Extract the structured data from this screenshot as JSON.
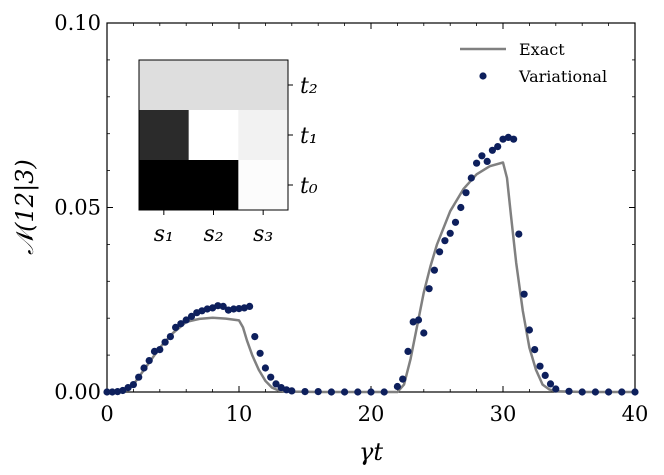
{
  "chart_data": {
    "type": "line",
    "xlabel": "γt",
    "ylabel": "𝒩(12|3)",
    "xlim": [
      0,
      40
    ],
    "ylim": [
      0,
      0.1
    ],
    "xticks": [
      0,
      10,
      20,
      30,
      40
    ],
    "xtick_labels": [
      "0",
      "10",
      "20",
      "30",
      "40"
    ],
    "yticks": [
      0.0,
      0.05,
      0.1
    ],
    "ytick_labels": [
      "0.00",
      "0.05",
      "0.10"
    ],
    "grid": false,
    "legend_position": "top-right",
    "series": [
      {
        "name": "Exact",
        "style": "line",
        "color": "#808080",
        "x": [
          0,
          1,
          2,
          3,
          4,
          5,
          6,
          7,
          8,
          9,
          10,
          10.3,
          10.6,
          11,
          11.5,
          12,
          12.5,
          13,
          14,
          16,
          18,
          20,
          22,
          22.5,
          23,
          23.5,
          24,
          24.5,
          25,
          26,
          27,
          28,
          29,
          30,
          30.3,
          30.6,
          31,
          31.5,
          32,
          32.5,
          33,
          33.5,
          34,
          35,
          36,
          38,
          40
        ],
        "y": [
          0,
          0.0003,
          0.002,
          0.007,
          0.012,
          0.016,
          0.019,
          0.0198,
          0.0201,
          0.0199,
          0.0194,
          0.0175,
          0.014,
          0.01,
          0.006,
          0.003,
          0.0012,
          0.0004,
          0.0001,
          0,
          0,
          0,
          0,
          0.002,
          0.009,
          0.018,
          0.027,
          0.034,
          0.04,
          0.049,
          0.055,
          0.059,
          0.0612,
          0.0622,
          0.058,
          0.048,
          0.035,
          0.022,
          0.012,
          0.006,
          0.002,
          0.0007,
          0.0002,
          0.0001,
          0,
          0,
          0
        ]
      },
      {
        "name": "Variational",
        "style": "markers",
        "color": "#0d1f5c",
        "x": [
          0,
          0.4,
          0.8,
          1.2,
          1.6,
          2,
          2.4,
          2.8,
          3.2,
          3.6,
          4,
          4.4,
          4.8,
          5.2,
          5.6,
          6,
          6.4,
          6.8,
          7.2,
          7.6,
          8,
          8.4,
          8.8,
          9.2,
          9.6,
          10,
          10.4,
          10.8,
          11.2,
          11.6,
          12,
          12.4,
          12.8,
          13.2,
          13.6,
          14,
          15,
          16,
          17,
          18,
          19,
          20,
          21,
          22,
          22.4,
          22.8,
          23.2,
          23.6,
          24,
          24.4,
          24.8,
          25.2,
          25.6,
          26,
          26.4,
          26.8,
          27.2,
          27.6,
          28,
          28.4,
          28.8,
          29.2,
          29.6,
          30,
          30.4,
          30.8,
          31.2,
          31.6,
          32,
          32.4,
          32.8,
          33.2,
          33.6,
          34,
          35,
          36,
          37,
          38,
          39,
          40
        ],
        "y": [
          0,
          0,
          0.0001,
          0.0004,
          0.0012,
          0.002,
          0.004,
          0.0065,
          0.0085,
          0.011,
          0.0115,
          0.0135,
          0.015,
          0.0175,
          0.0185,
          0.0195,
          0.0205,
          0.0215,
          0.022,
          0.0225,
          0.0228,
          0.0234,
          0.0232,
          0.0222,
          0.0225,
          0.0226,
          0.0228,
          0.0232,
          0.015,
          0.0105,
          0.0065,
          0.004,
          0.0022,
          0.0012,
          0.0006,
          0.0003,
          0.0001,
          0.0001,
          0,
          0,
          0,
          0,
          0,
          0.0015,
          0.0035,
          0.011,
          0.019,
          0.0195,
          0.016,
          0.028,
          0.033,
          0.038,
          0.041,
          0.043,
          0.046,
          0.05,
          0.054,
          0.058,
          0.062,
          0.064,
          0.0625,
          0.0655,
          0.0665,
          0.0685,
          0.069,
          0.0685,
          0.0428,
          0.0265,
          0.0168,
          0.0115,
          0.007,
          0.0045,
          0.0022,
          0.0008,
          0.0002,
          0,
          0,
          0,
          0,
          0
        ]
      }
    ],
    "inset": {
      "type": "heatmap",
      "row_labels": [
        "t₂",
        "t₁",
        "t₀"
      ],
      "col_labels": [
        "s₁",
        "s₂",
        "s₃"
      ],
      "values": [
        [
          0.87,
          0.87,
          0.87
        ],
        [
          0.17,
          1.0,
          0.95
        ],
        [
          0.0,
          0.0,
          0.99
        ]
      ],
      "colormap": "gray"
    }
  }
}
